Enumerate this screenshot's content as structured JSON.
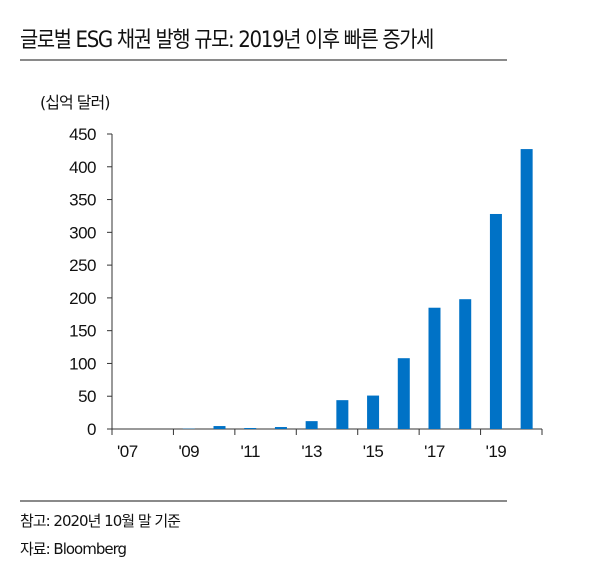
{
  "title": "글로벌 ESG 채권 발행 규모: 2019년 이후 빠른 증가세",
  "note": "참고: 2020년 10월 말 기준",
  "source": "자료: Bloomberg",
  "chart_data": {
    "type": "bar",
    "title": "글로벌 ESG 채권 발행 규모: 2019년 이후 빠른 증가세",
    "ylabel": "(십억 달러)",
    "xlabel": "",
    "categories": [
      "2007",
      "2008",
      "2009",
      "2010",
      "2011",
      "2012",
      "2013",
      "2014",
      "2015",
      "2016",
      "2017",
      "2018",
      "2019",
      "2020"
    ],
    "values": [
      0,
      0,
      0.5,
      4.5,
      1.5,
      3,
      12,
      44,
      51,
      108,
      185,
      198,
      328,
      427
    ],
    "xtick_labels": [
      "'07",
      "'09",
      "'11",
      "'13",
      "'15",
      "'17",
      "'19"
    ],
    "yticks": [
      "0",
      "50",
      "100",
      "150",
      "200",
      "250",
      "300",
      "350",
      "400",
      "450"
    ],
    "ylim": [
      0,
      450
    ],
    "grid": false,
    "bar_color": "#0072C6"
  }
}
